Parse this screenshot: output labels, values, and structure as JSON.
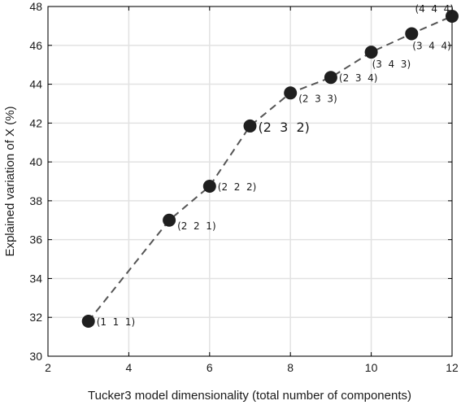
{
  "chart_data": {
    "type": "line",
    "title": "",
    "xlabel": "Tucker3 model dimensionality (total number of components)",
    "ylabel": "Explained variation of X (%)",
    "xlim": [
      2,
      12
    ],
    "ylim": [
      30,
      48
    ],
    "xticks": [
      "2",
      "4",
      "6",
      "8",
      "10",
      "12"
    ],
    "yticks": [
      "30",
      "32",
      "34",
      "36",
      "38",
      "40",
      "42",
      "44",
      "46",
      "48"
    ],
    "grid": true,
    "line_style": "dashed",
    "line_color": "#555555",
    "marker_color": "#1f1f1f",
    "points": [
      {
        "x": 3,
        "y": 31.8,
        "label": "(1  1  1)",
        "label_pos": "right",
        "emphasis": false
      },
      {
        "x": 5,
        "y": 37.0,
        "label": "(2  2  1)",
        "label_pos": "right-below",
        "emphasis": false
      },
      {
        "x": 6,
        "y": 38.75,
        "label": "(2  2  2)",
        "label_pos": "right",
        "emphasis": false
      },
      {
        "x": 7,
        "y": 41.85,
        "label": "(2  3  2)",
        "label_pos": "right",
        "emphasis": true
      },
      {
        "x": 8,
        "y": 43.55,
        "label": "(2  3  3)",
        "label_pos": "right-below",
        "emphasis": false
      },
      {
        "x": 9,
        "y": 44.35,
        "label": "(2  3  4)",
        "label_pos": "right",
        "emphasis": false
      },
      {
        "x": 10,
        "y": 45.65,
        "label": "(3  4  3)",
        "label_pos": "below",
        "emphasis": false
      },
      {
        "x": 11,
        "y": 46.6,
        "label": "(3  4  4)",
        "label_pos": "below",
        "emphasis": false
      },
      {
        "x": 12,
        "y": 47.5,
        "label": "(4  4  4)",
        "label_pos": "above-left",
        "emphasis": false
      }
    ]
  }
}
